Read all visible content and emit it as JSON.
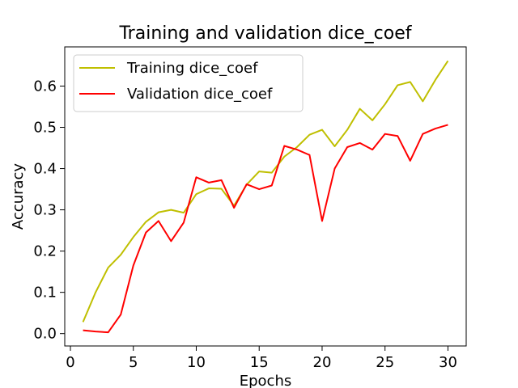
{
  "chart_data": {
    "type": "line",
    "title": "Training and validation dice_coef",
    "xlabel": "Epochs",
    "ylabel": "Accuracy",
    "xlim": [
      -0.45,
      31.45
    ],
    "ylim": [
      -0.03,
      0.695
    ],
    "xticks": [
      0,
      5,
      10,
      15,
      20,
      25,
      30
    ],
    "yticks": [
      0.0,
      0.1,
      0.2,
      0.3,
      0.4,
      0.5,
      0.6
    ],
    "ytick_labels": [
      "0.0",
      "0.1",
      "0.2",
      "0.3",
      "0.4",
      "0.5",
      "0.6"
    ],
    "grid": false,
    "legend_position": "upper-left",
    "x": [
      1,
      2,
      3,
      4,
      5,
      6,
      7,
      8,
      9,
      10,
      11,
      12,
      13,
      14,
      15,
      16,
      17,
      18,
      19,
      20,
      21,
      22,
      23,
      24,
      25,
      26,
      27,
      28,
      29,
      30
    ],
    "series": [
      {
        "name": "Training dice_coef",
        "color": "#bfbf00",
        "values": [
          0.028,
          0.1,
          0.16,
          0.191,
          0.234,
          0.271,
          0.294,
          0.3,
          0.293,
          0.338,
          0.352,
          0.351,
          0.31,
          0.361,
          0.393,
          0.39,
          0.429,
          0.452,
          0.482,
          0.494,
          0.454,
          0.494,
          0.545,
          0.517,
          0.556,
          0.602,
          0.61,
          0.563,
          0.615,
          0.661
        ]
      },
      {
        "name": "Validation dice_coef",
        "color": "#ff0000",
        "values": [
          0.008,
          0.005,
          0.003,
          0.046,
          0.165,
          0.245,
          0.273,
          0.224,
          0.269,
          0.379,
          0.366,
          0.372,
          0.305,
          0.362,
          0.35,
          0.359,
          0.455,
          0.446,
          0.433,
          0.273,
          0.4,
          0.452,
          0.462,
          0.446,
          0.484,
          0.479,
          0.419,
          0.484,
          0.497,
          0.506
        ]
      }
    ]
  }
}
